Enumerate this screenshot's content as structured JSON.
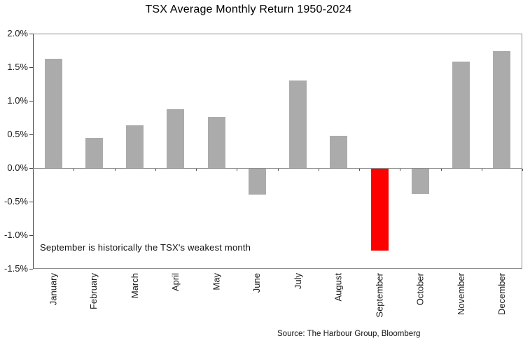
{
  "chart_data": {
    "type": "bar",
    "title": "TSX Average Monthly Return 1950-2024",
    "categories": [
      "January",
      "February",
      "March",
      "April",
      "May",
      "June",
      "July",
      "August",
      "September",
      "October",
      "November",
      "December"
    ],
    "values": [
      1.62,
      0.45,
      0.64,
      0.87,
      0.76,
      -0.39,
      1.3,
      0.48,
      -1.22,
      -0.38,
      1.58,
      1.74
    ],
    "unit": "%",
    "xlabel": "",
    "ylabel": "",
    "ylim": [
      -1.5,
      2.0
    ],
    "ytick_step": 0.5,
    "ytick_labels": [
      "2.0%",
      "1.5%",
      "1.0%",
      "0.5%",
      "0.0%",
      "-0.5%",
      "-1.0%",
      "-1.5%"
    ],
    "grid": "off",
    "legend": "none",
    "bar_color_default": "#ABABAB",
    "bar_color_highlight": "#FF0000",
    "highlight_category": "September",
    "annotation": "September is historically the TSX's weakest month",
    "source": "Source: The Harbour Group, Bloomberg"
  }
}
